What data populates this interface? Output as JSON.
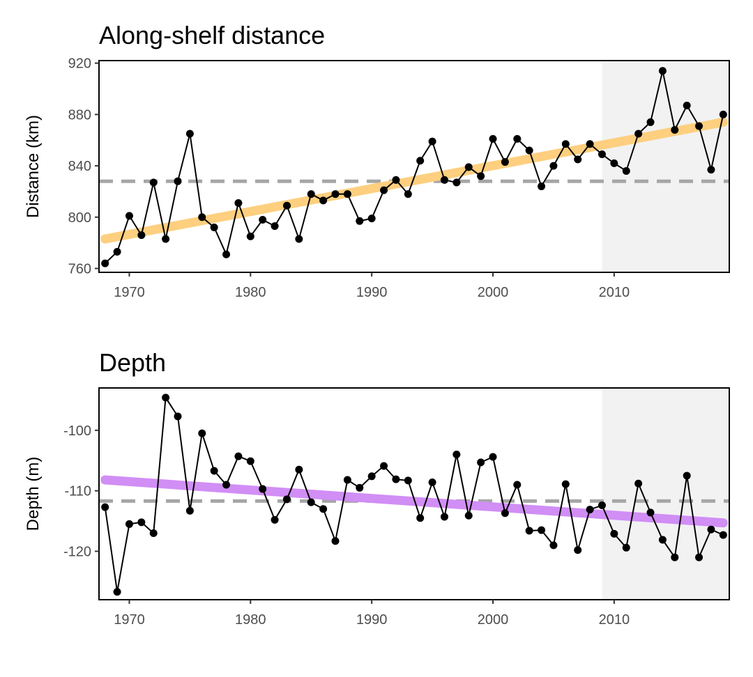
{
  "chart_data": [
    {
      "type": "line",
      "title": "Along-shelf distance",
      "xlabel": "",
      "ylabel": "Distance (km)",
      "xlim": [
        1967.5,
        2019.5
      ],
      "ylim": [
        757,
        922
      ],
      "xticks": [
        1970,
        1980,
        1990,
        2000,
        2010
      ],
      "yticks": [
        760,
        800,
        840,
        880,
        920
      ],
      "x_tick_labels": [
        "1970",
        "1980",
        "1990",
        "2000",
        "2010"
      ],
      "y_tick_labels": [
        "760",
        "800",
        "840",
        "880",
        "920"
      ],
      "grid": false,
      "shaded_region": {
        "x_start": 2009,
        "x_end": 2019.5,
        "color": "#f2f2f2"
      },
      "mean_line": {
        "y": 828,
        "color": "#a6a6a6"
      },
      "trend_line": {
        "x": [
          1968,
          2019
        ],
        "y": [
          783,
          874
        ],
        "color": "#fdcf7f"
      },
      "series": [
        {
          "color": "#000000",
          "x": [
            1968,
            1969,
            1970,
            1971,
            1972,
            1973,
            1974,
            1975,
            1976,
            1977,
            1978,
            1979,
            1980,
            1981,
            1982,
            1983,
            1984,
            1985,
            1986,
            1987,
            1988,
            1989,
            1990,
            1991,
            1992,
            1993,
            1994,
            1995,
            1996,
            1997,
            1998,
            1999,
            2000,
            2001,
            2002,
            2003,
            2004,
            2005,
            2006,
            2007,
            2008,
            2009,
            2010,
            2011,
            2012,
            2013,
            2014,
            2015,
            2016,
            2017,
            2018,
            2019
          ],
          "y": [
            764,
            773,
            801,
            786,
            827,
            783,
            828,
            865,
            800,
            792,
            771,
            811,
            785,
            798,
            793,
            809,
            783,
            818,
            813,
            818,
            818,
            797,
            799,
            821,
            829,
            818,
            844,
            859,
            829,
            827,
            839,
            832,
            861,
            843,
            861,
            852,
            824,
            840,
            857,
            845,
            857,
            849,
            842,
            836,
            865,
            874,
            914,
            868,
            887,
            871,
            837,
            880
          ]
        }
      ]
    },
    {
      "type": "line",
      "title": "Depth",
      "xlabel": "",
      "ylabel": "Depth (m)",
      "xlim": [
        1967.5,
        2019.5
      ],
      "ylim": [
        -128,
        -93
      ],
      "xticks": [
        1970,
        1980,
        1990,
        2000,
        2010
      ],
      "yticks": [
        -100,
        -110,
        -120
      ],
      "x_tick_labels": [
        "1970",
        "1980",
        "1990",
        "2000",
        "2010"
      ],
      "y_tick_labels": [
        "-100",
        "-110",
        "-120"
      ],
      "grid": false,
      "shaded_region": {
        "x_start": 2009,
        "x_end": 2019.5,
        "color": "#f2f2f2"
      },
      "mean_line": {
        "y": -111.7,
        "color": "#a6a6a6"
      },
      "trend_line": {
        "x": [
          1968,
          2019
        ],
        "y": [
          -108.2,
          -115.3
        ],
        "color": "#d18ef5"
      },
      "series": [
        {
          "color": "#000000",
          "x": [
            1968,
            1969,
            1970,
            1971,
            1972,
            1973,
            1974,
            1975,
            1976,
            1977,
            1978,
            1979,
            1980,
            1981,
            1982,
            1983,
            1984,
            1985,
            1986,
            1987,
            1988,
            1989,
            1990,
            1991,
            1992,
            1993,
            1994,
            1995,
            1996,
            1997,
            1998,
            1999,
            2000,
            2001,
            2002,
            2003,
            2004,
            2005,
            2006,
            2007,
            2008,
            2009,
            2010,
            2011,
            2012,
            2013,
            2014,
            2015,
            2016,
            2017,
            2018,
            2019
          ],
          "y": [
            -112.7,
            -126.7,
            -115.5,
            -115.2,
            -117,
            -94.6,
            -97.7,
            -113.3,
            -100.5,
            -106.7,
            -109,
            -104.3,
            -105.1,
            -109.7,
            -114.8,
            -111.4,
            -106.5,
            -111.9,
            -113,
            -118.3,
            -108.2,
            -109.5,
            -107.6,
            -105.9,
            -108.1,
            -108.3,
            -114.5,
            -108.6,
            -114.3,
            -104,
            -114.1,
            -105.3,
            -104.4,
            -113.7,
            -109,
            -116.6,
            -116.5,
            -119,
            -108.9,
            -119.8,
            -113.1,
            -112.4,
            -117.1,
            -119.4,
            -108.8,
            -113.6,
            -118.1,
            -121,
            -107.5,
            -121,
            -116.4,
            -117.3
          ]
        }
      ]
    }
  ]
}
